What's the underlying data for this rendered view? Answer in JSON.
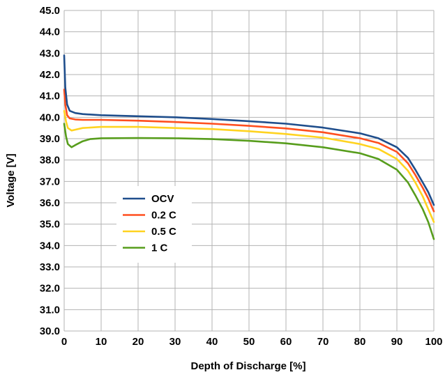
{
  "chart_data": {
    "type": "line",
    "title": "",
    "xlabel": "Depth of Discharge [%]",
    "ylabel": "Voltage [V]",
    "xlim": [
      0,
      100
    ],
    "ylim": [
      30,
      45
    ],
    "x_ticks": [
      0,
      10,
      20,
      30,
      40,
      50,
      60,
      70,
      80,
      90,
      100
    ],
    "y_ticks": [
      "30.0",
      "31.0",
      "32.0",
      "33.0",
      "34.0",
      "35.0",
      "36.0",
      "37.0",
      "38.0",
      "39.0",
      "40.0",
      "41.0",
      "42.0",
      "43.0",
      "44.0",
      "45.0"
    ],
    "grid": true,
    "legend_position": "center-left",
    "series": [
      {
        "name": "OCV",
        "color": "#1f4e8c",
        "points": [
          [
            0,
            42.9
          ],
          [
            0.3,
            41.4
          ],
          [
            0.8,
            40.6
          ],
          [
            1.5,
            40.3
          ],
          [
            3,
            40.2
          ],
          [
            5,
            40.15
          ],
          [
            10,
            40.1
          ],
          [
            20,
            40.05
          ],
          [
            30,
            40.0
          ],
          [
            40,
            39.92
          ],
          [
            50,
            39.82
          ],
          [
            60,
            39.7
          ],
          [
            70,
            39.52
          ],
          [
            80,
            39.25
          ],
          [
            85,
            39.02
          ],
          [
            90,
            38.6
          ],
          [
            93,
            38.1
          ],
          [
            95,
            37.55
          ],
          [
            97,
            36.95
          ],
          [
            98.5,
            36.5
          ],
          [
            100,
            35.9
          ]
        ]
      },
      {
        "name": "0.2 C",
        "color": "#ff4f1f",
        "points": [
          [
            0,
            41.3
          ],
          [
            0.3,
            40.6
          ],
          [
            0.8,
            40.1
          ],
          [
            1.5,
            39.95
          ],
          [
            3,
            39.9
          ],
          [
            5,
            39.88
          ],
          [
            10,
            39.88
          ],
          [
            20,
            39.84
          ],
          [
            30,
            39.78
          ],
          [
            40,
            39.7
          ],
          [
            50,
            39.6
          ],
          [
            60,
            39.48
          ],
          [
            70,
            39.3
          ],
          [
            80,
            39.02
          ],
          [
            85,
            38.8
          ],
          [
            90,
            38.38
          ],
          [
            93,
            37.85
          ],
          [
            95,
            37.3
          ],
          [
            97,
            36.7
          ],
          [
            98.5,
            36.2
          ],
          [
            100,
            35.6
          ]
        ]
      },
      {
        "name": "0.5 C",
        "color": "#ffd320",
        "points": [
          [
            0,
            40.3
          ],
          [
            0.5,
            39.8
          ],
          [
            1,
            39.5
          ],
          [
            2,
            39.38
          ],
          [
            3,
            39.42
          ],
          [
            5,
            39.5
          ],
          [
            10,
            39.55
          ],
          [
            20,
            39.55
          ],
          [
            30,
            39.5
          ],
          [
            40,
            39.45
          ],
          [
            50,
            39.35
          ],
          [
            60,
            39.22
          ],
          [
            70,
            39.05
          ],
          [
            80,
            38.75
          ],
          [
            85,
            38.52
          ],
          [
            90,
            38.05
          ],
          [
            93,
            37.5
          ],
          [
            95,
            36.95
          ],
          [
            97,
            36.3
          ],
          [
            98.5,
            35.7
          ],
          [
            100,
            35.1
          ]
        ]
      },
      {
        "name": "1 C",
        "color": "#579d1c",
        "points": [
          [
            0,
            39.7
          ],
          [
            0.5,
            39.1
          ],
          [
            1,
            38.75
          ],
          [
            2,
            38.6
          ],
          [
            3,
            38.7
          ],
          [
            5,
            38.88
          ],
          [
            7,
            38.98
          ],
          [
            10,
            39.02
          ],
          [
            20,
            39.03
          ],
          [
            30,
            39.02
          ],
          [
            40,
            38.98
          ],
          [
            50,
            38.9
          ],
          [
            60,
            38.78
          ],
          [
            70,
            38.6
          ],
          [
            80,
            38.32
          ],
          [
            85,
            38.05
          ],
          [
            90,
            37.55
          ],
          [
            93,
            36.95
          ],
          [
            95,
            36.35
          ],
          [
            97,
            35.7
          ],
          [
            98.5,
            35.1
          ],
          [
            100,
            34.3
          ]
        ]
      }
    ]
  }
}
